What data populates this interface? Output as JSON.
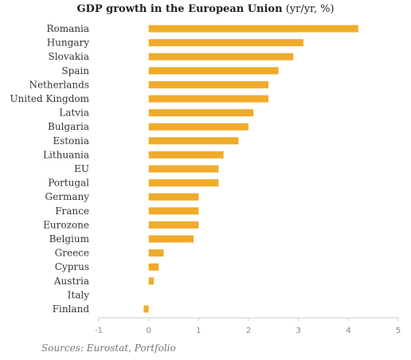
{
  "chart_data": {
    "type": "bar",
    "orientation": "horizontal",
    "title": "GDP growth in the European Union",
    "title_suffix": "(yr/yr, %)",
    "categories": [
      "Romania",
      "Hungary",
      "Slovakia",
      "Spain",
      "Netherlands",
      "United Kingdom",
      "Latvia",
      "Bulgaria",
      "Estonia",
      "Lithuania",
      "EU",
      "Portugal",
      "Germany",
      "France",
      "Eurozone",
      "Belgium",
      "Greece",
      "Cyprus",
      "Austria",
      "Italy",
      "Finland"
    ],
    "values": [
      4.2,
      3.1,
      2.9,
      2.6,
      2.4,
      2.4,
      2.1,
      2.0,
      1.8,
      1.5,
      1.4,
      1.4,
      1.0,
      1.0,
      1.0,
      0.9,
      0.3,
      0.2,
      0.1,
      0.0,
      -0.1
    ],
    "xlim": [
      -1,
      5
    ],
    "xticks": [
      -1,
      0,
      1,
      2,
      3,
      4,
      5
    ],
    "grid": false,
    "bar_color": "#f0ab2b",
    "axis_color": "#cccccc"
  },
  "source": "Sources: Eurostat, Portfolio"
}
